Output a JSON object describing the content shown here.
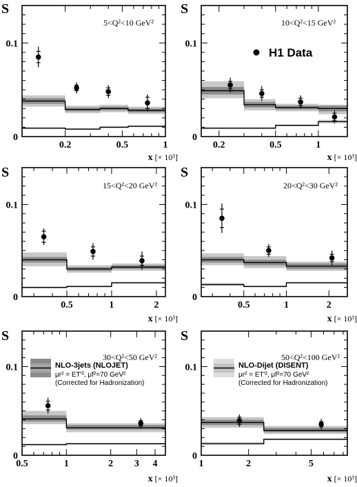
{
  "figure": {
    "y_axis_label": "S",
    "x_axis_label": "x",
    "x_axis_unit": "[× 10³]",
    "h1_legend": "H1 Data",
    "nlo3_legend": {
      "title": "NLO-3jets (NLOJET)",
      "scales": "μr² = ET'², μf²=70 GeV²",
      "note": "(Corrected for Hadronization)"
    },
    "dijet_legend": {
      "title": "NLO-Dijet (DISENT)",
      "scales": "μr² = ET'², μf²=70 GeV²",
      "note": "(Corrected for Hadronization)"
    },
    "colors": {
      "band_dark": "#8c8c8c",
      "band_light": "#c8c8c8",
      "lower_band": "#d3d3d3"
    }
  },
  "chart_data": [
    {
      "type": "scatter",
      "title": "5<Q²<10 GeV²",
      "xscale": "log",
      "xlim": [
        0.1,
        1.0
      ],
      "ylim": [
        0,
        0.14
      ],
      "xticks": [
        {
          "v": 0.2,
          "label": "0.2"
        },
        {
          "v": 0.5,
          "label": "0.5"
        },
        {
          "v": 1.0,
          "label": "1"
        }
      ],
      "yticks": [
        {
          "v": 0,
          "label": "0"
        },
        {
          "v": 0.1,
          "label": "0.1"
        }
      ],
      "points": [
        {
          "x": 0.13,
          "y": 0.085,
          "stat": 0.006,
          "tot": 0.011
        },
        {
          "x": 0.24,
          "y": 0.052,
          "stat": 0.003,
          "tot": 0.006
        },
        {
          "x": 0.4,
          "y": 0.048,
          "stat": 0.004,
          "tot": 0.007
        },
        {
          "x": 0.75,
          "y": 0.036,
          "stat": 0.006,
          "tot": 0.009
        }
      ],
      "nlo3": [
        {
          "x0": 0.1,
          "x1": 0.2,
          "y": 0.038,
          "lo_in": 0.035,
          "hi_in": 0.041,
          "lo_out": 0.032,
          "hi_out": 0.044
        },
        {
          "x0": 0.2,
          "x1": 0.35,
          "y": 0.029,
          "lo_in": 0.027,
          "hi_in": 0.031,
          "lo_out": 0.025,
          "hi_out": 0.033
        },
        {
          "x0": 0.35,
          "x1": 0.55,
          "y": 0.03,
          "lo_in": 0.028,
          "hi_in": 0.032,
          "lo_out": 0.026,
          "hi_out": 0.034
        },
        {
          "x0": 0.55,
          "x1": 1.0,
          "y": 0.028,
          "lo_in": 0.026,
          "hi_in": 0.03,
          "lo_out": 0.024,
          "hi_out": 0.032
        }
      ],
      "dijet": [
        {
          "x0": 0.1,
          "x1": 0.2,
          "y": 0.009,
          "lo": 0.008,
          "hi": 0.01
        },
        {
          "x0": 0.2,
          "x1": 0.35,
          "y": 0.008,
          "lo": 0.007,
          "hi": 0.009
        },
        {
          "x0": 0.35,
          "x1": 0.55,
          "y": 0.01,
          "lo": 0.009,
          "hi": 0.011
        },
        {
          "x0": 0.55,
          "x1": 1.0,
          "y": 0.011,
          "lo": 0.01,
          "hi": 0.012
        }
      ]
    },
    {
      "type": "scatter",
      "title": "10<Q²<15 GeV²",
      "xscale": "log",
      "xlim": [
        0.15,
        1.6
      ],
      "ylim": [
        0,
        0.14
      ],
      "xticks": [
        {
          "v": 0.2,
          "label": "0.2"
        },
        {
          "v": 0.5,
          "label": "0.5"
        },
        {
          "v": 1.0,
          "label": "1"
        }
      ],
      "yticks": [
        {
          "v": 0,
          "label": "0"
        },
        {
          "v": 0.1,
          "label": "0.1"
        }
      ],
      "points": [
        {
          "x": 0.24,
          "y": 0.055,
          "stat": 0.004,
          "tot": 0.008
        },
        {
          "x": 0.4,
          "y": 0.046,
          "stat": 0.004,
          "tot": 0.008
        },
        {
          "x": 0.75,
          "y": 0.037,
          "stat": 0.004,
          "tot": 0.007
        },
        {
          "x": 1.3,
          "y": 0.021,
          "stat": 0.004,
          "tot": 0.007
        }
      ],
      "nlo3": [
        {
          "x0": 0.15,
          "x1": 0.3,
          "y": 0.049,
          "lo_in": 0.045,
          "hi_in": 0.053,
          "lo_out": 0.041,
          "hi_out": 0.059
        },
        {
          "x0": 0.3,
          "x1": 0.5,
          "y": 0.034,
          "lo_in": 0.031,
          "hi_in": 0.037,
          "lo_out": 0.028,
          "hi_out": 0.04
        },
        {
          "x0": 0.5,
          "x1": 1.0,
          "y": 0.031,
          "lo_in": 0.029,
          "hi_in": 0.033,
          "lo_out": 0.027,
          "hi_out": 0.035
        },
        {
          "x0": 1.0,
          "x1": 1.6,
          "y": 0.03,
          "lo_in": 0.027,
          "hi_in": 0.033,
          "lo_out": 0.024,
          "hi_out": 0.034
        }
      ],
      "dijet": [
        {
          "x0": 0.15,
          "x1": 0.3,
          "y": 0.009,
          "lo": 0.008,
          "hi": 0.01
        },
        {
          "x0": 0.3,
          "x1": 0.5,
          "y": 0.009,
          "lo": 0.008,
          "hi": 0.01
        },
        {
          "x0": 0.5,
          "x1": 1.0,
          "y": 0.012,
          "lo": 0.011,
          "hi": 0.013
        },
        {
          "x0": 1.0,
          "x1": 1.6,
          "y": 0.016,
          "lo": 0.014,
          "hi": 0.018
        }
      ]
    },
    {
      "type": "scatter",
      "title": "15<Q²<20 GeV²",
      "xscale": "log",
      "xlim": [
        0.25,
        2.3
      ],
      "ylim": [
        0,
        0.14
      ],
      "xticks": [
        {
          "v": 0.5,
          "label": "0.5"
        },
        {
          "v": 1.0,
          "label": "1"
        },
        {
          "v": 2.0,
          "label": "2"
        }
      ],
      "yticks": [
        {
          "v": 0,
          "label": "0"
        },
        {
          "v": 0.1,
          "label": "0.1"
        }
      ],
      "points": [
        {
          "x": 0.35,
          "y": 0.065,
          "stat": 0.006,
          "tot": 0.009
        },
        {
          "x": 0.75,
          "y": 0.049,
          "stat": 0.005,
          "tot": 0.009
        },
        {
          "x": 1.6,
          "y": 0.039,
          "stat": 0.005,
          "tot": 0.01
        }
      ],
      "nlo3": [
        {
          "x0": 0.25,
          "x1": 0.5,
          "y": 0.04,
          "lo_in": 0.037,
          "hi_in": 0.043,
          "lo_out": 0.033,
          "hi_out": 0.048
        },
        {
          "x0": 0.5,
          "x1": 1.0,
          "y": 0.03,
          "lo_in": 0.028,
          "hi_in": 0.032,
          "lo_out": 0.026,
          "hi_out": 0.034
        },
        {
          "x0": 1.0,
          "x1": 2.3,
          "y": 0.032,
          "lo_in": 0.03,
          "hi_in": 0.034,
          "lo_out": 0.028,
          "hi_out": 0.036
        }
      ],
      "dijet": [
        {
          "x0": 0.25,
          "x1": 0.5,
          "y": 0.01,
          "lo": 0.009,
          "hi": 0.011
        },
        {
          "x0": 0.5,
          "x1": 1.0,
          "y": 0.011,
          "lo": 0.01,
          "hi": 0.012
        },
        {
          "x0": 1.0,
          "x1": 2.3,
          "y": 0.015,
          "lo": 0.014,
          "hi": 0.016
        }
      ]
    },
    {
      "type": "scatter",
      "title": "20<Q²<30 GeV²",
      "xscale": "log",
      "xlim": [
        0.25,
        2.7
      ],
      "ylim": [
        0,
        0.14
      ],
      "xticks": [
        {
          "v": 0.5,
          "label": "0.5"
        },
        {
          "v": 1.0,
          "label": "1"
        },
        {
          "v": 2.0,
          "label": "2"
        }
      ],
      "yticks": [
        {
          "v": 0,
          "label": "0"
        },
        {
          "v": 0.1,
          "label": "0.1"
        }
      ],
      "points": [
        {
          "x": 0.35,
          "y": 0.085,
          "stat": 0.01,
          "tot": 0.016
        },
        {
          "x": 0.75,
          "y": 0.05,
          "stat": 0.004,
          "tot": 0.007
        },
        {
          "x": 2.1,
          "y": 0.042,
          "stat": 0.004,
          "tot": 0.008
        }
      ],
      "nlo3": [
        {
          "x0": 0.25,
          "x1": 0.5,
          "y": 0.04,
          "lo_in": 0.037,
          "hi_in": 0.043,
          "lo_out": 0.034,
          "hi_out": 0.047
        },
        {
          "x0": 0.5,
          "x1": 1.0,
          "y": 0.037,
          "lo_in": 0.034,
          "hi_in": 0.04,
          "lo_out": 0.031,
          "hi_out": 0.044
        },
        {
          "x0": 1.0,
          "x1": 2.7,
          "y": 0.033,
          "lo_in": 0.03,
          "hi_in": 0.036,
          "lo_out": 0.028,
          "hi_out": 0.038
        }
      ],
      "dijet": [
        {
          "x0": 0.25,
          "x1": 0.5,
          "y": 0.013,
          "lo": 0.012,
          "hi": 0.015
        },
        {
          "x0": 0.5,
          "x1": 1.0,
          "y": 0.011,
          "lo": 0.01,
          "hi": 0.012
        },
        {
          "x0": 1.0,
          "x1": 2.7,
          "y": 0.015,
          "lo": 0.014,
          "hi": 0.016
        }
      ]
    },
    {
      "type": "scatter",
      "title": "30<Q²<50 GeV²",
      "xscale": "log",
      "xlim": [
        0.5,
        4.7
      ],
      "ylim": [
        0,
        0.14
      ],
      "xticks": [
        {
          "v": 0.5,
          "label": "0.5"
        },
        {
          "v": 1.0,
          "label": "1"
        },
        {
          "v": 2.0,
          "label": "2"
        },
        {
          "v": 3.0,
          "label": "3"
        },
        {
          "v": 4.0,
          "label": "4"
        }
      ],
      "yticks": [
        {
          "v": 0,
          "label": "0"
        },
        {
          "v": 0.1,
          "label": "0.1"
        }
      ],
      "points": [
        {
          "x": 0.75,
          "y": 0.056,
          "stat": 0.005,
          "tot": 0.009
        },
        {
          "x": 3.2,
          "y": 0.036,
          "stat": 0.003,
          "tot": 0.006
        }
      ],
      "nlo3": [
        {
          "x0": 0.5,
          "x1": 1.0,
          "y": 0.041,
          "lo_in": 0.038,
          "hi_in": 0.045,
          "lo_out": 0.035,
          "hi_out": 0.05
        },
        {
          "x0": 1.0,
          "x1": 4.7,
          "y": 0.031,
          "lo_in": 0.029,
          "hi_in": 0.034,
          "lo_out": 0.026,
          "hi_out": 0.036
        }
      ],
      "dijet": [
        {
          "x0": 0.5,
          "x1": 1.0,
          "y": 0.012,
          "lo": 0.011,
          "hi": 0.013
        },
        {
          "x0": 1.0,
          "x1": 4.7,
          "y": 0.013,
          "lo": 0.012,
          "hi": 0.014
        }
      ]
    },
    {
      "type": "scatter",
      "title": "50<Q²<100 GeV²",
      "xscale": "log",
      "xlim": [
        1.0,
        8.5
      ],
      "ylim": [
        0,
        0.14
      ],
      "xticks": [
        {
          "v": 1.0,
          "label": "1"
        },
        {
          "v": 2.0,
          "label": "2"
        },
        {
          "v": 5.0,
          "label": "5"
        }
      ],
      "yticks": [
        {
          "v": 0,
          "label": "0"
        },
        {
          "v": 0.1,
          "label": "0.1"
        }
      ],
      "points": [
        {
          "x": 1.75,
          "y": 0.039,
          "stat": 0.004,
          "tot": 0.007
        },
        {
          "x": 5.8,
          "y": 0.035,
          "stat": 0.003,
          "tot": 0.006
        }
      ],
      "nlo3": [
        {
          "x0": 1.0,
          "x1": 2.5,
          "y": 0.037,
          "lo_in": 0.034,
          "hi_in": 0.04,
          "lo_out": 0.031,
          "hi_out": 0.043
        },
        {
          "x0": 2.5,
          "x1": 8.5,
          "y": 0.028,
          "lo_in": 0.026,
          "hi_in": 0.031,
          "lo_out": 0.024,
          "hi_out": 0.033
        }
      ],
      "dijet": [
        {
          "x0": 1.0,
          "x1": 2.5,
          "y": 0.013,
          "lo": 0.012,
          "hi": 0.015
        },
        {
          "x0": 2.5,
          "x1": 8.5,
          "y": 0.018,
          "lo": 0.017,
          "hi": 0.019
        }
      ]
    }
  ]
}
